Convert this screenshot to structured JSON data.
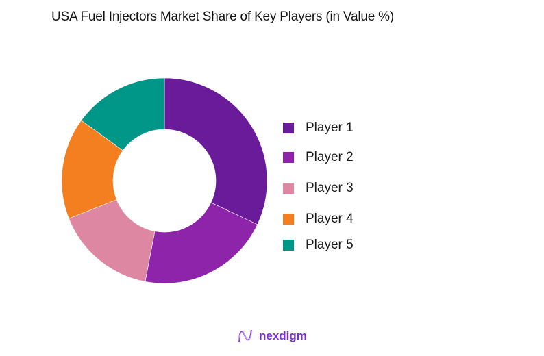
{
  "chart_data": {
    "type": "pie",
    "variant": "donut",
    "title": "USA Fuel Injectors Market Share of Key Players (in Value %)",
    "categories": [
      "Player 1",
      "Player 2",
      "Player 3",
      "Player 4",
      "Player 5"
    ],
    "values": [
      32,
      21,
      16,
      16,
      15
    ],
    "colors": [
      "#6a1b9a",
      "#8e24aa",
      "#de87a2",
      "#f47f20",
      "#009688"
    ],
    "legend_position": "right",
    "start_angle": "12 o'clock, clockwise",
    "data_labels": false
  },
  "header": {
    "title": "USA Fuel Injectors Market Share of Key Players (in Value %)"
  },
  "legend": {
    "items": [
      {
        "label": "Player 1",
        "color": "#6a1b9a"
      },
      {
        "label": "Player 2",
        "color": "#8e24aa"
      },
      {
        "label": "Player 3",
        "color": "#de87a2"
      },
      {
        "label": "Player 4",
        "color": "#f47f20"
      },
      {
        "label": "Player 5",
        "color": "#009688"
      }
    ]
  },
  "footer": {
    "logo_text": "nexdigm",
    "logo_icon": "nexdigm-wave-icon"
  }
}
